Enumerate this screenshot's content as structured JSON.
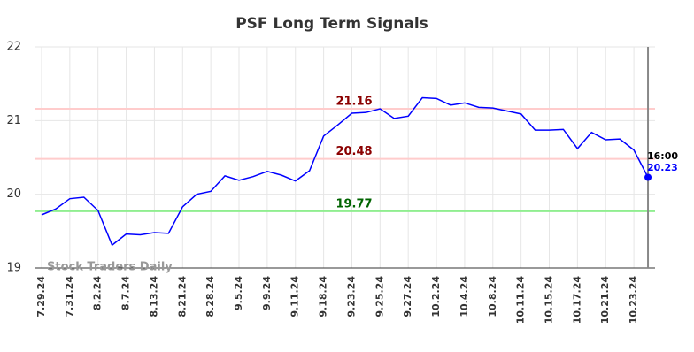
{
  "chart_data": {
    "type": "line",
    "title": "PSF Long Term Signals",
    "categories": [
      "7.29.24",
      null,
      "7.31.24",
      null,
      "8.2.24",
      null,
      "8.7.24",
      null,
      "8.13.24",
      null,
      "8.21.24",
      null,
      "8.28.24",
      null,
      "9.5.24",
      null,
      "9.9.24",
      null,
      "9.11.24",
      null,
      "9.18.24",
      null,
      "9.23.24",
      null,
      "9.25.24",
      null,
      "9.27.24",
      null,
      "10.2.24",
      null,
      "10.4.24",
      null,
      "10.8.24",
      null,
      "10.11.24",
      null,
      "10.15.24",
      null,
      "10.17.24",
      null,
      "10.21.24",
      null,
      "10.23.24",
      null
    ],
    "values": [
      19.72,
      19.8,
      19.94,
      19.96,
      19.78,
      19.31,
      19.46,
      19.45,
      19.48,
      19.47,
      19.83,
      20.0,
      20.04,
      20.25,
      20.19,
      20.24,
      20.31,
      20.26,
      20.18,
      20.32,
      20.79,
      20.94,
      21.1,
      21.11,
      21.16,
      21.03,
      21.06,
      21.31,
      21.3,
      21.21,
      21.24,
      21.18,
      21.17,
      21.13,
      21.09,
      20.87,
      20.87,
      20.88,
      20.62,
      20.84,
      20.74,
      20.75,
      20.6,
      20.23
    ],
    "color": "#0000ff",
    "ylim": [
      19,
      22
    ],
    "yticks": [
      19,
      20,
      21,
      22
    ],
    "grid": true,
    "reference_lines": [
      {
        "value": 21.16,
        "color": "#ffcccc",
        "label_color": "#8b0000"
      },
      {
        "value": 20.48,
        "color": "#ffcccc",
        "label_color": "#8b0000"
      },
      {
        "value": 19.77,
        "color": "#90ee90",
        "label_color": "#006400"
      }
    ],
    "last_time_label": "16:00",
    "watermark": "Stock Traders Daily"
  }
}
